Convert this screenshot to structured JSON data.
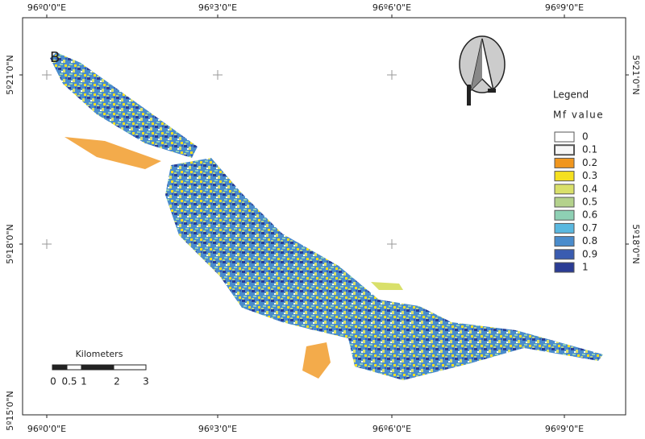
{
  "panel": "B",
  "longitude_labels": [
    "96º0'0\"E",
    "96º3'0\"E",
    "96º6'0\"E",
    "96º9'0\"E"
  ],
  "latitude_labels": [
    "5º21'0\"N",
    "5º18'0\"N",
    "5º15'0\"N"
  ],
  "legend": {
    "title": "Legend",
    "subtitle": "Mf value",
    "items": [
      {
        "label": "0",
        "color": "#ffffff"
      },
      {
        "label": "0.1",
        "color": "#f7f7f7"
      },
      {
        "label": "0.2",
        "color": "#f0961e"
      },
      {
        "label": "0.3",
        "color": "#f5e020"
      },
      {
        "label": "0.4",
        "color": "#d9e06a"
      },
      {
        "label": "0.5",
        "color": "#b4d28c"
      },
      {
        "label": "0.6",
        "color": "#8ed0b4"
      },
      {
        "label": "0.7",
        "color": "#5ab8e0"
      },
      {
        "label": "0.8",
        "color": "#4a8ccc"
      },
      {
        "label": "0.9",
        "color": "#3a5cb0"
      },
      {
        "label": "1",
        "color": "#2a3c94"
      }
    ]
  },
  "scale_bar": {
    "title": "Kilometers",
    "labels": [
      "0",
      "0.5",
      "1",
      "2",
      "3"
    ]
  }
}
